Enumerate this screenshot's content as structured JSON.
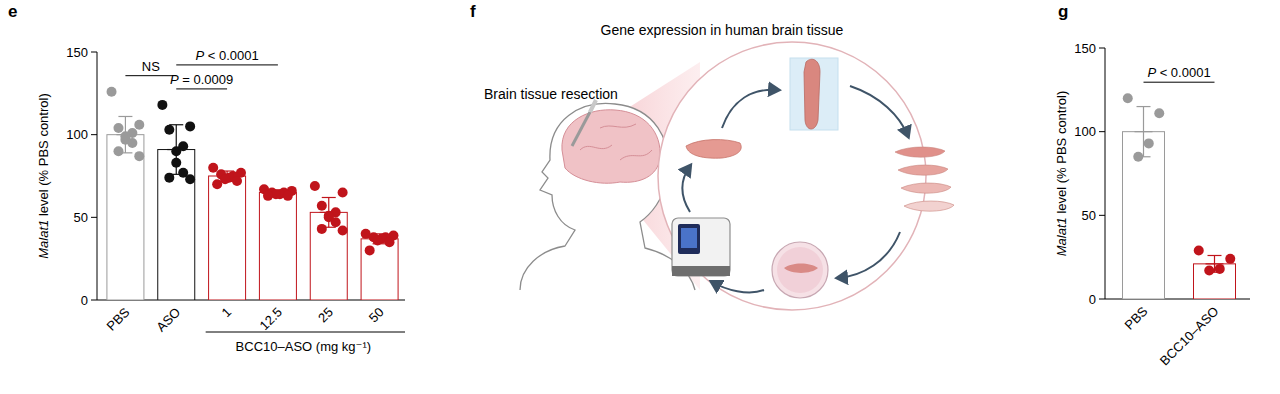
{
  "chart_data": [
    {
      "type": "bar",
      "panel_label": "e",
      "y_label": "Malat1 level (% PBS control)",
      "categories": [
        "PBS",
        "ASO",
        "1",
        "12.5",
        "25",
        "50"
      ],
      "group": {
        "label": "BCC10–ASO (mg kg⁻¹)",
        "categories": [
          "1",
          "12.5",
          "25",
          "50"
        ]
      },
      "values": [
        100,
        91,
        75,
        65,
        53,
        37
      ],
      "errors": [
        11,
        15,
        3,
        1.5,
        9,
        3
      ],
      "points": [
        [
          126,
          106,
          104,
          101,
          99,
          97,
          95,
          90,
          87
        ],
        [
          118,
          105,
          103,
          93,
          90,
          83,
          77,
          74,
          73
        ],
        [
          80,
          77,
          76,
          75,
          74,
          73,
          72,
          70
        ],
        [
          67,
          66,
          65,
          65,
          64,
          64,
          63,
          63
        ],
        [
          69,
          65,
          57,
          53,
          51,
          50,
          47,
          43,
          42
        ],
        [
          40,
          39,
          38,
          38,
          37,
          36,
          35,
          30
        ]
      ],
      "colors": [
        "#9a9a9a",
        "#111111",
        "#c0141b",
        "#c0141b",
        "#c0141b",
        "#c0141b"
      ],
      "ylim": [
        0,
        150
      ],
      "yticks": [
        0,
        50,
        100,
        150
      ],
      "annotations": [
        {
          "text": "NS",
          "between": [
            "PBS",
            "ASO"
          ]
        },
        {
          "text": "P = 0.0009",
          "between": [
            "ASO",
            "1"
          ]
        },
        {
          "text": "P < 0.0001",
          "between": [
            "ASO",
            "12.5"
          ]
        }
      ]
    },
    {
      "type": "bar",
      "panel_label": "g",
      "y_label": "Malat1 level (% PBS control)",
      "categories": [
        "PBS",
        "BCC10–ASO"
      ],
      "values": [
        100,
        21
      ],
      "errors": [
        15,
        5
      ],
      "points": [
        [
          120,
          111,
          93,
          85
        ],
        [
          29,
          24,
          18,
          17
        ]
      ],
      "colors": [
        "#9a9a9a",
        "#c0141b"
      ],
      "ylim": [
        0,
        150
      ],
      "yticks": [
        0,
        50,
        100,
        150
      ],
      "annotations": [
        {
          "text": "P < 0.0001",
          "between": [
            "PBS",
            "BCC10–ASO"
          ]
        }
      ]
    }
  ],
  "diagram": {
    "panel_label": "f",
    "title": "Gene expression in human brain tissue",
    "label": "Brain tissue resection"
  }
}
